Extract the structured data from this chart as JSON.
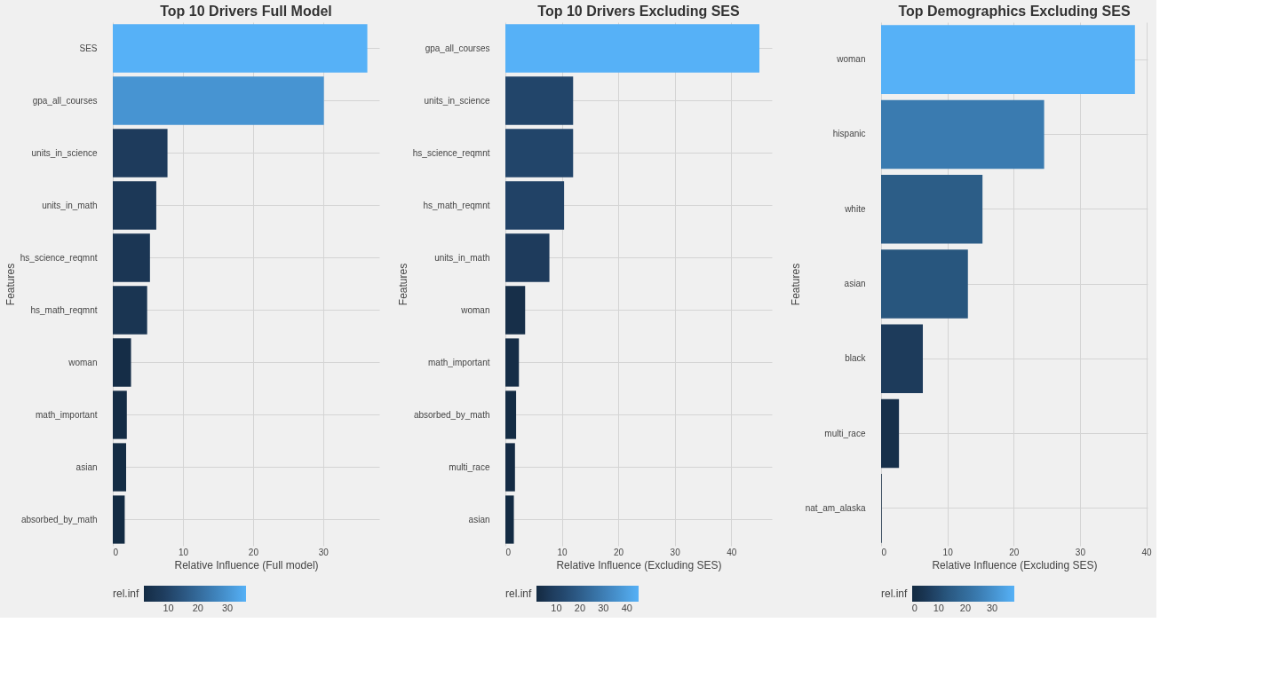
{
  "chart_data": [
    {
      "type": "bar",
      "orientation": "horizontal",
      "title": "Top 10 Drivers Full Model",
      "xlabel": "Relative Influence (Full model)",
      "ylabel": "Features",
      "legend_title": "rel.inf",
      "grid": true,
      "categories": [
        "SES",
        "gpa_all_courses",
        "units_in_science",
        "units_in_math",
        "hs_science_reqmnt",
        "hs_math_reqmnt",
        "woman",
        "math_important",
        "asian",
        "absorbed_by_math"
      ],
      "values": [
        36.3,
        30.1,
        7.8,
        6.2,
        5.3,
        4.9,
        2.6,
        2.0,
        1.9,
        1.7
      ],
      "colors": [
        "#56b1f7",
        "#4794d2",
        "#1e3b5c",
        "#1c3857",
        "#1b3654",
        "#1a3552",
        "#152d47",
        "#142c45",
        "#142c44",
        "#132b43"
      ],
      "xlim": [
        0,
        38
      ],
      "xticks": [
        0,
        10,
        20,
        30
      ],
      "cticks": [
        10,
        20,
        30
      ]
    },
    {
      "type": "bar",
      "orientation": "horizontal",
      "title": "Top 10 Drivers Excluding SES",
      "xlabel": "Relative Influence (Excluding SES)",
      "ylabel": "Features",
      "legend_title": "rel.inf",
      "grid": true,
      "categories": [
        "gpa_all_courses",
        "units_in_science",
        "hs_science_reqmnt",
        "hs_math_reqmnt",
        "units_in_math",
        "woman",
        "math_important",
        "absorbed_by_math",
        "multi_race",
        "asian"
      ],
      "values": [
        45.0,
        12.0,
        12.0,
        10.4,
        7.8,
        3.5,
        2.4,
        1.9,
        1.7,
        1.5
      ],
      "colors": [
        "#56b1f7",
        "#22456a",
        "#22456a",
        "#214266",
        "#1e3b5c",
        "#172f49",
        "#152d46",
        "#142c44",
        "#142b44",
        "#132b43"
      ],
      "xlim": [
        0,
        47.2
      ],
      "xticks": [
        0,
        10,
        20,
        30,
        40
      ],
      "cticks": [
        10,
        20,
        30,
        40
      ]
    },
    {
      "type": "bar",
      "orientation": "horizontal",
      "title": "Top Demographics Excluding SES",
      "xlabel": "Relative Influence (Excluding SES)",
      "ylabel": "Features",
      "legend_title": "rel.inf",
      "grid": true,
      "categories": [
        "woman",
        "hispanic",
        "white",
        "asian",
        "black",
        "multi_race",
        "nat_am_alaska"
      ],
      "values": [
        38.3,
        24.6,
        15.3,
        13.1,
        6.3,
        2.7,
        0.1
      ],
      "colors": [
        "#56b1f7",
        "#3a7bb0",
        "#2c5d87",
        "#28567e",
        "#1d3b5b",
        "#17304a",
        "#132b43"
      ],
      "xlim": [
        0,
        40.2
      ],
      "xticks": [
        0,
        10,
        20,
        30,
        40
      ],
      "cticks": [
        0,
        10,
        20,
        30
      ]
    }
  ]
}
